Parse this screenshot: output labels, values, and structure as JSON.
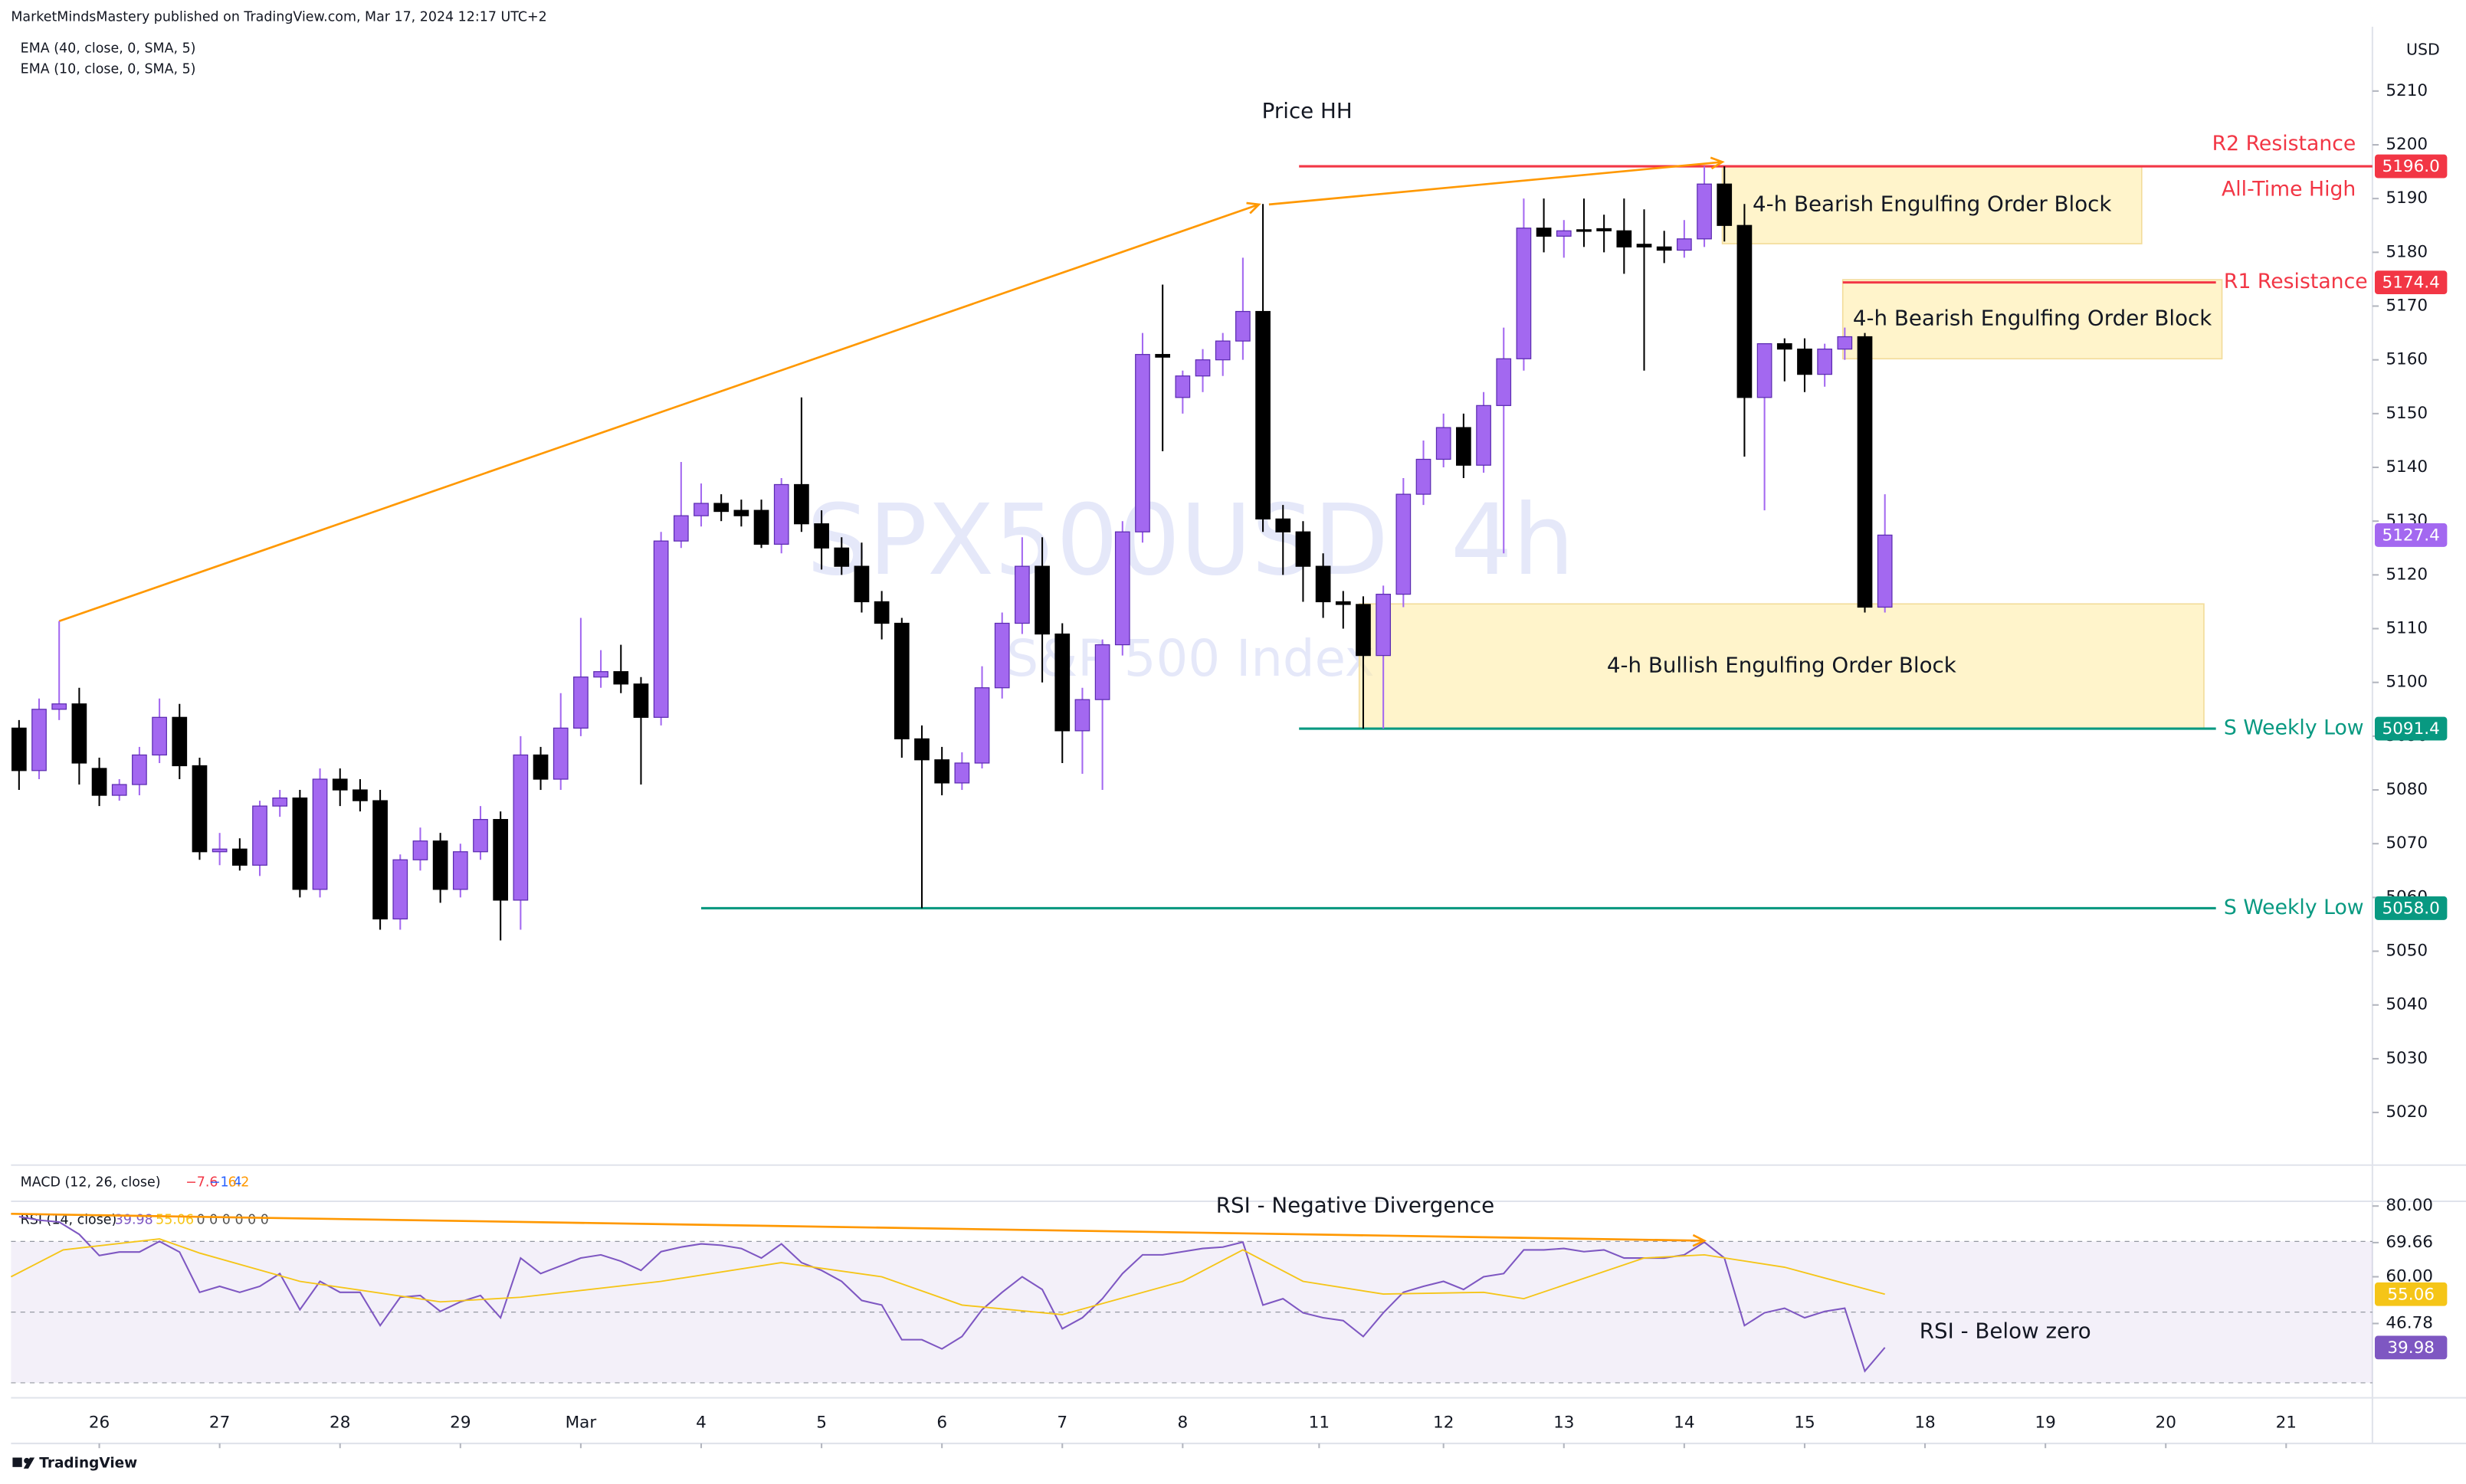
{
  "header": {
    "publisher": "MarketMindsMastery published on TradingView.com, Mar 17, 2024 12:17 UTC+2",
    "studies": [
      "EMA (40, close, 0, SMA, 5)",
      "EMA (10, close, 0, SMA, 5)"
    ]
  },
  "footer": {
    "brand": "TradingView"
  },
  "chart_data": [
    {
      "type": "candlestick",
      "title": "SPX500USD, 4h",
      "subtitle": "S&P 500 Index",
      "currency": "USD",
      "up_color": "#a368f0",
      "down_color": "#000000",
      "open": [
        5091.5,
        5083.6,
        5095,
        5096,
        5084,
        5079,
        5081,
        5086.5,
        5093.5,
        5084.5,
        5068.5,
        5069,
        5066,
        5077,
        5078.5,
        5061.5,
        5082,
        5080,
        5078,
        5056,
        5067,
        5070.5,
        5061.5,
        5068.5,
        5074.5,
        5059.5,
        5086.5,
        5082,
        5091.5,
        5101,
        5102,
        5099.7,
        5093.5,
        5126.3,
        5131,
        5133.3,
        5132,
        5132,
        5125.7,
        5136.8,
        5129.5,
        5125,
        5121.6,
        5115,
        5111,
        5089.5,
        5085.6,
        5081.3,
        5085,
        5099,
        5111,
        5121.6,
        5109,
        5091,
        5096.8,
        5107,
        5128,
        5161,
        5153,
        5157,
        5160,
        5163.5,
        5169,
        5130.4,
        5128,
        5121.6,
        5115,
        5114.5,
        5105,
        5116.4,
        5135,
        5141.5,
        5147.4,
        5140.4,
        5151.5,
        5160.2,
        5184.5,
        5183,
        5184.2,
        5184.4,
        5184,
        5181.5,
        5181,
        5180.4,
        5182.5,
        5192.7,
        5185,
        5153,
        5163,
        5162,
        5157.3,
        5162,
        5164.3,
        5114
      ],
      "high": [
        5093,
        5097,
        5111.4,
        5099,
        5086,
        5082,
        5088,
        5097,
        5096,
        5086,
        5072,
        5071,
        5078,
        5080,
        5080,
        5084,
        5084,
        5082,
        5080,
        5068,
        5073,
        5072,
        5070,
        5077,
        5076,
        5090,
        5088,
        5098,
        5112,
        5106,
        5107,
        5101,
        5128,
        5141,
        5137,
        5135,
        5134,
        5134,
        5138,
        5153,
        5132,
        5127,
        5126,
        5117,
        5112,
        5092,
        5088,
        5087,
        5103,
        5113,
        5127,
        5127,
        5111,
        5099,
        5108,
        5130,
        5165,
        5174,
        5158,
        5162,
        5165,
        5179,
        5189,
        5133,
        5130,
        5124,
        5117,
        5116,
        5118,
        5138,
        5145,
        5150,
        5150,
        5154,
        5166,
        5190,
        5190,
        5186,
        5190,
        5187,
        5190,
        5188,
        5184,
        5186,
        5196,
        5196,
        5189,
        5163,
        5164,
        5164,
        5163,
        5166,
        5165,
        5135
      ],
      "low": [
        5080,
        5082,
        5093,
        5081,
        5077,
        5078,
        5079,
        5085,
        5082,
        5067,
        5066,
        5065,
        5064,
        5075,
        5060,
        5060,
        5077,
        5076,
        5054,
        5054,
        5065,
        5059,
        5060,
        5067,
        5052,
        5054,
        5080,
        5080,
        5090,
        5099,
        5098,
        5081,
        5092,
        5125,
        5129,
        5130,
        5129,
        5125,
        5124,
        5128,
        5121,
        5120,
        5113,
        5108,
        5086,
        5058,
        5079,
        5080,
        5084,
        5097,
        5109,
        5100,
        5085,
        5083,
        5080,
        5105,
        5126,
        5143,
        5150,
        5154,
        5157,
        5160,
        5128,
        5120,
        5115,
        5112,
        5110,
        5091.4,
        5091.4,
        5114,
        5133,
        5140,
        5138,
        5139,
        5124,
        5158,
        5180,
        5179,
        5181,
        5180,
        5176,
        5158,
        5178,
        5179,
        5181,
        5182,
        5142,
        5132,
        5156,
        5154,
        5155,
        5160,
        5113,
        5113
      ],
      "close": [
        5083.6,
        5095,
        5096,
        5085,
        5079,
        5081,
        5086.5,
        5093.5,
        5084.5,
        5068.5,
        5069,
        5066,
        5077,
        5078.5,
        5061.5,
        5082,
        5080,
        5078,
        5056,
        5067,
        5070.5,
        5061.5,
        5068.5,
        5074.5,
        5059.5,
        5086.5,
        5082,
        5091.5,
        5101,
        5102,
        5099.7,
        5093.5,
        5126.3,
        5131,
        5133.3,
        5131.8,
        5131,
        5125.7,
        5136.8,
        5129.5,
        5125,
        5121.6,
        5115,
        5111,
        5089.5,
        5085.6,
        5081.3,
        5085,
        5099,
        5111,
        5121.6,
        5109,
        5091,
        5096.8,
        5107,
        5128,
        5161,
        5160.5,
        5157,
        5160,
        5163.5,
        5169,
        5130.4,
        5128,
        5121.6,
        5115,
        5114.5,
        5105,
        5116.4,
        5135,
        5141.5,
        5147.4,
        5140.4,
        5151.5,
        5160.2,
        5184.5,
        5183,
        5184,
        5184,
        5184,
        5181,
        5181,
        5180.4,
        5182.5,
        5192.7,
        5185,
        5153,
        5163,
        5162,
        5157.3,
        5162,
        5164.3,
        5114,
        5127.4
      ],
      "xlim": [
        -0.4,
        117.3
      ],
      "xticks": [
        {
          "value": 4,
          "label": "26"
        },
        {
          "value": 10,
          "label": "27"
        },
        {
          "value": 16,
          "label": "28"
        },
        {
          "value": 22,
          "label": "29"
        },
        {
          "value": 28,
          "label": "Mar"
        },
        {
          "value": 34,
          "label": "4"
        },
        {
          "value": 40,
          "label": "5"
        },
        {
          "value": 46,
          "label": "6"
        },
        {
          "value": 52,
          "label": "7"
        },
        {
          "value": 58,
          "label": "8"
        },
        {
          "value": 64.8,
          "label": "11"
        },
        {
          "value": 71,
          "label": "12"
        },
        {
          "value": 77,
          "label": "13"
        },
        {
          "value": 83,
          "label": "14"
        },
        {
          "value": 89,
          "label": "15"
        },
        {
          "value": 95,
          "label": "18"
        },
        {
          "value": 101,
          "label": "19"
        },
        {
          "value": 107,
          "label": "20"
        },
        {
          "value": 113,
          "label": "21"
        }
      ],
      "ylim": [
        5010.5,
        5220.5
      ],
      "yticks": [
        5020,
        5030,
        5040,
        5050,
        5060,
        5070,
        5080,
        5090,
        5100,
        5110,
        5120,
        5130,
        5140,
        5150,
        5160,
        5170,
        5180,
        5190,
        5200,
        5210
      ],
      "last_price": 5127.4,
      "levels": [
        {
          "label": "R2 Resistance",
          "note": "All-Time High",
          "value": 5196,
          "value_label": "5196.0",
          "color": "#f23645",
          "x": [
            63.8,
            117.3
          ]
        },
        {
          "label": "R1 Resistance",
          "value": 5174.4,
          "color": "#f23645",
          "x": [
            90.9,
            109.5
          ]
        },
        {
          "label": "S Weekly Low",
          "value": 5091.4,
          "color": "#089981",
          "x": [
            63.8,
            109.5
          ]
        },
        {
          "label": "S Weekly Low",
          "value": 5058,
          "value_label": "5058.0",
          "color": "#089981",
          "x": [
            34,
            109.5
          ]
        }
      ],
      "zones": [
        {
          "label": "4-h Bearish Engulfing Order Block",
          "x": [
            84.9,
            105.8
          ],
          "y": [
            5181.6,
            5196
          ]
        },
        {
          "label": "4-h Bearish Engulfing Order Block",
          "x": [
            90.9,
            109.8
          ],
          "y": [
            5160.2,
            5174.9
          ]
        },
        {
          "label": "4-h Bullish Engulfing Order Block",
          "x": [
            66.8,
            108.9
          ],
          "y": [
            5091.4,
            5114.6
          ]
        }
      ],
      "arrows": [
        {
          "x": [
            2,
            61.8
          ],
          "y": [
            5111.4,
            5188.9
          ]
        },
        {
          "x": [
            62.3,
            84.9
          ],
          "y": [
            5188.9,
            5196.8
          ]
        }
      ],
      "annotations": [
        {
          "text": "Price HH",
          "x": 64.2,
          "y": 5206.1
        }
      ]
    },
    {
      "type": "line",
      "title": "RSI (14, close)",
      "extra": "0 0 0 0 0 0",
      "macd": {
        "title": "MACD (12, 26, close)",
        "values": [
          {
            "value": -7.6,
            "label": "−7.6"
          },
          {
            "value": -1.4,
            "label": "−1.4"
          },
          {
            "value": 6.2,
            "label": "6.2"
          }
        ]
      },
      "ylim": [
        26.2,
        80.9
      ],
      "yticks": [
        {
          "value": 80,
          "label": "80.00"
        },
        69.66,
        {
          "value": 60,
          "label": "60.00"
        },
        46.78
      ],
      "band": [
        30,
        70
      ],
      "hlines": [
        70,
        50,
        30
      ],
      "series": [
        {
          "color": "#7e57c2",
          "values": [
            77,
            76,
            75.5,
            72,
            66,
            67,
            67,
            70,
            67,
            55.6,
            57.3,
            55.6,
            57.3,
            60.9,
            50.7,
            58.7,
            55.6,
            55.6,
            46.2,
            54.2,
            54.7,
            50.2,
            52.9,
            54.7,
            48.4,
            65.3,
            60.9,
            63.1,
            65.3,
            66.2,
            64.4,
            61.8,
            67.1,
            68.4,
            69.3,
            68.9,
            68,
            65.3,
            69.3,
            64,
            61.8,
            58.7,
            53.3,
            52,
            42.2,
            42.2,
            39.6,
            43.1,
            50.7,
            55.6,
            60,
            56.4,
            45.3,
            48.4,
            53.8,
            60.9,
            66.2,
            66.2,
            67.1,
            68,
            68.4,
            69.8,
            52,
            53.8,
            49.8,
            48.4,
            47.6,
            43.1,
            49.8,
            55.6,
            57.3,
            58.7,
            56.4,
            60,
            60.9,
            67.6,
            67.6,
            68,
            67.1,
            67.6,
            65.3,
            65.3,
            65.3,
            66.2,
            69.8,
            65.3,
            46.2,
            49.8,
            51.1,
            48.4,
            50.2,
            51.1,
            33.3,
            39.98
          ]
        },
        {
          "color": "#f5c518",
          "x": [
            -0.4,
            2.2,
            7,
            9,
            14,
            21,
            25,
            32,
            38,
            43,
            47,
            52,
            58,
            61,
            64,
            68,
            73,
            75,
            81,
            84,
            88,
            93
          ],
          "values": [
            60,
            67.6,
            70.7,
            66.7,
            58.7,
            52.9,
            54.2,
            58.7,
            64,
            60,
            52,
            49.3,
            58.7,
            67.6,
            58.7,
            55.1,
            55.6,
            53.8,
            65.3,
            66.2,
            62.7,
            55.06
          ]
        }
      ],
      "arrows": [
        {
          "x": [
            -0.4,
            84
          ],
          "y": [
            77.8,
            70.2
          ]
        }
      ],
      "annotations": [
        {
          "text": "RSI - Negative Divergence",
          "x": 66.6,
          "y": 79.9
        },
        {
          "text": "RSI - Below zero",
          "x": 99,
          "y": 44.4
        }
      ]
    }
  ]
}
